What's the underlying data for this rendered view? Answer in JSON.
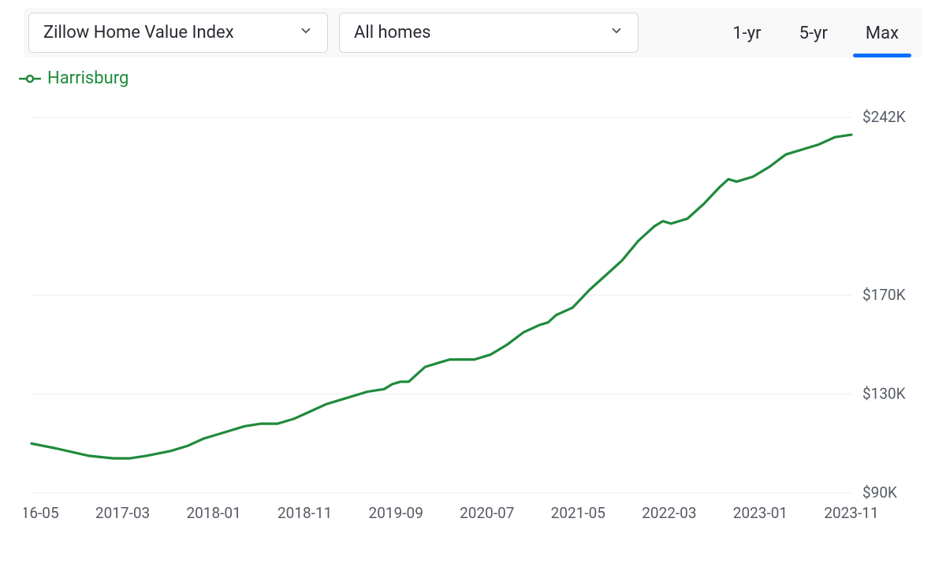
{
  "controls": {
    "metric_dropdown": {
      "label": "Zillow Home Value Index"
    },
    "filter_dropdown": {
      "label": "All homes"
    },
    "range_tabs": [
      {
        "label": "1-yr",
        "active": false
      },
      {
        "label": "5-yr",
        "active": false
      },
      {
        "label": "Max",
        "active": true
      }
    ]
  },
  "legend": {
    "label": "Harrisburg",
    "color": "#1f8a3b"
  },
  "chart": {
    "type": "line",
    "background_color": "#ffffff",
    "grid_color": "#ececef",
    "line_color": "#1f8a3b",
    "line_width": 3.2,
    "axis_label_color": "#555a63",
    "axis_label_fontsize": 19,
    "y_axis": {
      "min": 90,
      "max": 250,
      "ticks": [
        {
          "value": 242,
          "label": "$242K"
        },
        {
          "value": 170,
          "label": "$170K"
        },
        {
          "value": 130,
          "label": "$130K"
        },
        {
          "value": 90,
          "label": "$90K"
        }
      ]
    },
    "x_axis": {
      "labels": [
        "2016-05",
        "2017-03",
        "2018-01",
        "2018-11",
        "2019-09",
        "2020-07",
        "2021-05",
        "2022-03",
        "2023-01",
        "2023-11"
      ]
    },
    "series": [
      {
        "name": "Harrisburg",
        "color": "#1f8a3b",
        "points": [
          [
            0.0,
            110
          ],
          [
            0.03,
            108
          ],
          [
            0.07,
            105
          ],
          [
            0.1,
            104
          ],
          [
            0.12,
            104
          ],
          [
            0.14,
            105
          ],
          [
            0.17,
            107
          ],
          [
            0.19,
            109
          ],
          [
            0.21,
            112
          ],
          [
            0.24,
            115
          ],
          [
            0.26,
            117
          ],
          [
            0.28,
            118
          ],
          [
            0.3,
            118
          ],
          [
            0.32,
            120
          ],
          [
            0.34,
            123
          ],
          [
            0.36,
            126
          ],
          [
            0.38,
            128
          ],
          [
            0.4,
            130
          ],
          [
            0.41,
            131
          ],
          [
            0.43,
            132
          ],
          [
            0.44,
            134
          ],
          [
            0.45,
            135
          ],
          [
            0.46,
            135
          ],
          [
            0.47,
            138
          ],
          [
            0.48,
            141
          ],
          [
            0.5,
            143
          ],
          [
            0.51,
            144
          ],
          [
            0.53,
            144
          ],
          [
            0.54,
            144
          ],
          [
            0.56,
            146
          ],
          [
            0.58,
            150
          ],
          [
            0.6,
            155
          ],
          [
            0.62,
            158
          ],
          [
            0.63,
            159
          ],
          [
            0.64,
            162
          ],
          [
            0.66,
            165
          ],
          [
            0.68,
            172
          ],
          [
            0.7,
            178
          ],
          [
            0.72,
            184
          ],
          [
            0.74,
            192
          ],
          [
            0.76,
            198
          ],
          [
            0.77,
            200
          ],
          [
            0.78,
            199
          ],
          [
            0.8,
            201
          ],
          [
            0.82,
            207
          ],
          [
            0.84,
            214
          ],
          [
            0.85,
            217
          ],
          [
            0.86,
            216
          ],
          [
            0.88,
            218
          ],
          [
            0.9,
            222
          ],
          [
            0.92,
            227
          ],
          [
            0.94,
            229
          ],
          [
            0.96,
            231
          ],
          [
            0.98,
            234
          ],
          [
            1.0,
            235
          ]
        ]
      }
    ]
  }
}
